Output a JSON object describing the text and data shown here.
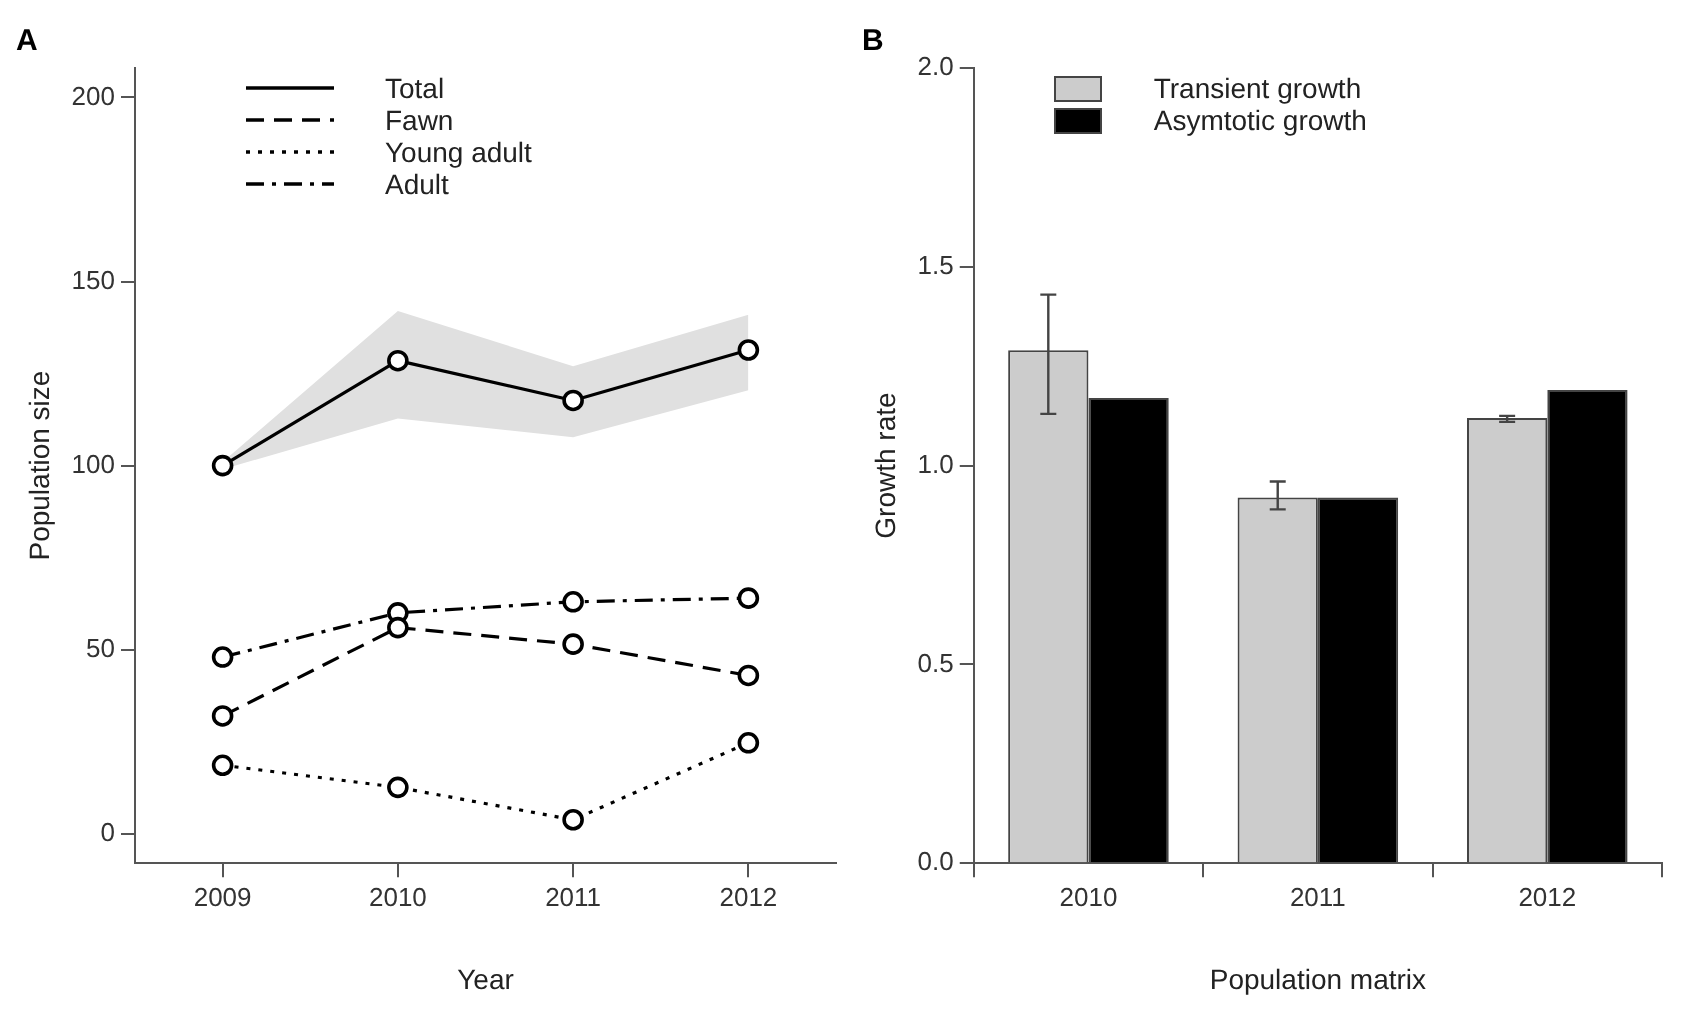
{
  "chart_data": [
    {
      "type": "line",
      "title": "A",
      "xlabel": "Year",
      "ylabel": "Population size",
      "categories": [
        "2009",
        "2010",
        "2011",
        "2012"
      ],
      "ylim": [
        -8,
        208
      ],
      "yticks": [
        0,
        50,
        100,
        150,
        200
      ],
      "marker": "circle",
      "legend": "top",
      "grid": false,
      "series": [
        {
          "name": "Total",
          "color": "#000000",
          "line_style": "solid",
          "values": [
            100,
            128.5,
            117.7,
            131.4
          ],
          "lower": [
            99,
            112.8,
            107.7,
            120.5
          ],
          "upper": [
            101,
            142,
            127,
            141
          ]
        },
        {
          "name": "Fawn",
          "color": "#000000",
          "line_style": "dashed",
          "values": [
            32,
            56,
            51.5,
            43
          ]
        },
        {
          "name": "Young adult",
          "color": "#000000",
          "line_style": "dotted",
          "values": [
            18.6,
            12.6,
            3.8,
            24.7
          ]
        },
        {
          "name": "Adult",
          "color": "#000000",
          "line_style": "dashdot",
          "values": [
            48,
            60,
            63,
            64
          ]
        }
      ]
    },
    {
      "type": "bar",
      "title": "B",
      "xlabel": "Population matrix",
      "ylabel": "Growth rate",
      "categories": [
        "2010",
        "2011",
        "2012"
      ],
      "ylim": [
        0,
        2
      ],
      "yticks": [
        {
          "value": 0,
          "label": "0.0"
        },
        {
          "value": 0.5,
          "label": "0.5"
        },
        {
          "value": 1,
          "label": "1.0"
        },
        {
          "value": 1.5,
          "label": "1.5"
        },
        {
          "value": 2,
          "label": "2.0"
        }
      ],
      "legend": "top",
      "grid": false,
      "series": [
        {
          "name": "Transient growth",
          "color": "#cccccc",
          "values": [
            1.29,
            0.92,
            1.12
          ],
          "errors": [
            [
              1.13,
              1.43
            ],
            [
              0.89,
              0.96
            ],
            [
              1.11,
              1.125
            ]
          ]
        },
        {
          "name": "Asymtotic growth",
          "color": "#000000",
          "values": [
            1.17,
            0.92,
            1.19
          ]
        }
      ]
    }
  ]
}
